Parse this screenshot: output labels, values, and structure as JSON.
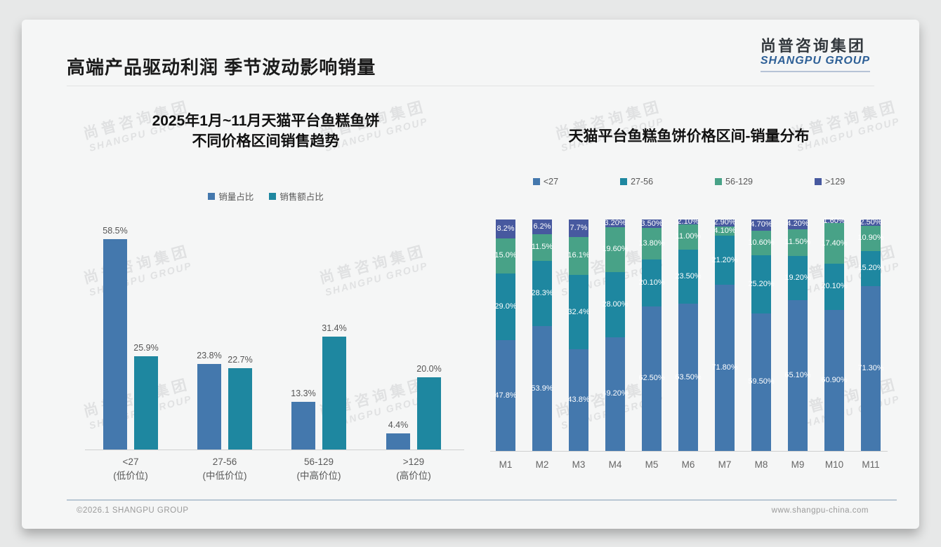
{
  "slide": {
    "title": "高端产品驱动利润 季节波动影响销量",
    "logo": {
      "cn": "尚普咨询集团",
      "en": "SHANGPU GROUP"
    },
    "watermark": {
      "cn": "尚普咨询集团",
      "en": "SHANGPU GROUP"
    },
    "footer": {
      "left": "©2026.1 SHANGPU GROUP",
      "right": "www.shangpu-china.com"
    }
  },
  "colors": {
    "blue": "#4478ad",
    "teal": "#1e87a0",
    "green": "#48a287",
    "slate": "#47599f",
    "logo_blue": "#2d5f96"
  },
  "chart_data": [
    {
      "type": "bar",
      "title": "2025年1月~11月天猫平台鱼糕鱼饼不同价格区间销售趋势",
      "title_line1": "2025年1月~11月天猫平台鱼糕鱼饼",
      "title_line2": "不同价格区间销售趋势",
      "categories": [
        "<27",
        "27-56",
        "56-129",
        ">129"
      ],
      "category_sublabels": [
        "(低价位)",
        "(中低价位)",
        "(中高价位)",
        "(高价位)"
      ],
      "series": [
        {
          "name": "销量占比",
          "color_key": "blue",
          "values": [
            58.5,
            23.8,
            13.3,
            4.4
          ],
          "labels": [
            "58.5%",
            "23.8%",
            "13.3%",
            "4.4%"
          ]
        },
        {
          "name": "销售额占比",
          "color_key": "teal",
          "values": [
            25.9,
            22.7,
            31.4,
            20.0
          ],
          "labels": [
            "25.9%",
            "22.7%",
            "31.4%",
            "20.0%"
          ]
        }
      ],
      "ylim": [
        0,
        65
      ],
      "grid": false,
      "legend_position": "top"
    },
    {
      "type": "stacked-bar-100",
      "title": "天猫平台鱼糕鱼饼价格区间-销量分布",
      "categories": [
        "M1",
        "M2",
        "M3",
        "M4",
        "M5",
        "M6",
        "M7",
        "M8",
        "M9",
        "M10",
        "M11"
      ],
      "series": [
        {
          "name": "<27",
          "color_key": "blue",
          "values": [
            47.8,
            53.9,
            43.8,
            49.2,
            62.5,
            63.5,
            71.8,
            59.5,
            65.1,
            60.9,
            71.3
          ],
          "labels": [
            "47.8%",
            "53.9%",
            "43.8%",
            "49.20%",
            "62.50%",
            "63.50%",
            "71.80%",
            "59.50%",
            "65.10%",
            "60.90%",
            "71.30%"
          ]
        },
        {
          "name": "27-56",
          "color_key": "teal",
          "values": [
            29.0,
            28.3,
            32.4,
            28.0,
            20.1,
            23.5,
            21.2,
            25.2,
            19.2,
            20.1,
            15.2
          ],
          "labels": [
            "29.0%",
            "28.3%",
            "32.4%",
            "28.00%",
            "20.10%",
            "23.50%",
            "21.20%",
            "25.20%",
            "19.20%",
            "20.10%",
            "15.20%"
          ]
        },
        {
          "name": "56-129",
          "color_key": "green",
          "values": [
            15.0,
            11.5,
            16.1,
            19.6,
            13.8,
            11.0,
            4.1,
            10.6,
            11.5,
            17.4,
            10.9
          ],
          "labels": [
            "15.0%",
            "11.5%",
            "16.1%",
            "19.60%",
            "13.80%",
            "11.00%",
            "4.10%",
            "10.60%",
            "11.50%",
            "17.40%",
            "10.90%"
          ]
        },
        {
          "name": ">129",
          "color_key": "slate",
          "values": [
            8.2,
            6.2,
            7.7,
            3.2,
            3.5,
            2.1,
            2.9,
            4.7,
            4.2,
            1.6,
            2.5
          ],
          "labels": [
            "8.2%",
            "6.2%",
            "7.7%",
            "3.20%",
            "3.50%",
            "2.10%",
            "2.90%",
            "4.70%",
            "4.20%",
            "1.60%",
            "2.50%"
          ]
        }
      ],
      "ylim": [
        0,
        100
      ],
      "grid": false,
      "legend_position": "top"
    }
  ]
}
